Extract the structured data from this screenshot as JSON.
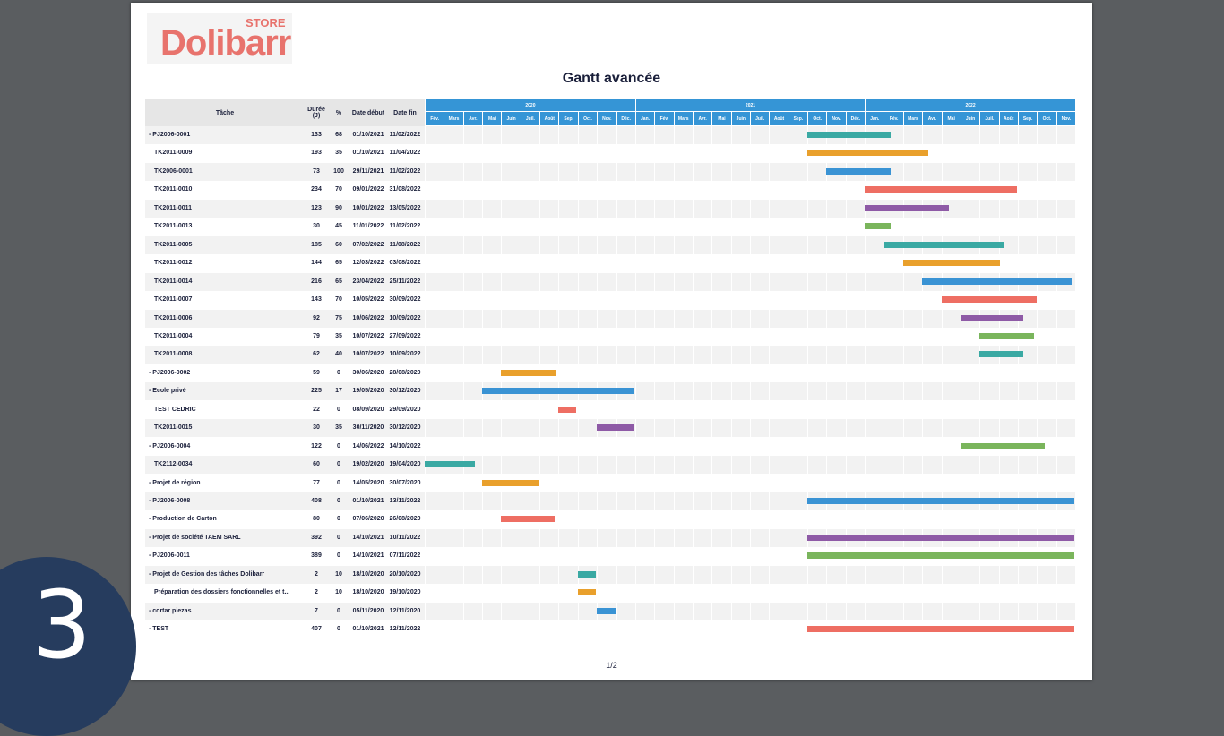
{
  "logo": {
    "main": "Dolibarr",
    "store": "STORE"
  },
  "title": "Gantt avancée",
  "columns": {
    "task": "Tâche",
    "duration": "Durée\n(J)",
    "percent": "%",
    "start": "Date début",
    "end": "Date fin"
  },
  "years": [
    "2020",
    "2021",
    "2022"
  ],
  "months": [
    "Fév.",
    "Mars",
    "Avr.",
    "Mai",
    "Juin",
    "Juil.",
    "Août",
    "Sep.",
    "Oct.",
    "Nov.",
    "Déc.",
    "Jan.",
    "Fév.",
    "Mars",
    "Avr.",
    "Mai",
    "Juin",
    "Juil.",
    "Août",
    "Sep.",
    "Oct.",
    "Nov.",
    "Déc.",
    "Jan.",
    "Fév.",
    "Mars",
    "Avr.",
    "Mai",
    "Juin",
    "Juil.",
    "Août",
    "Sep.",
    "Oct.",
    "Nov."
  ],
  "colors": {
    "blue": "#3a93d4",
    "teal": "#3aa9a3",
    "orange": "#e9a02c",
    "red": "#ee6e63",
    "purple": "#8e5aa6",
    "green": "#7ab55c"
  },
  "rows": [
    {
      "task": "- PJ2006-0001",
      "dur": "133",
      "pct": "68",
      "start": "01/10/2021",
      "end": "11/02/2022",
      "color": "teal",
      "top": true,
      "s": [
        2021,
        10,
        1
      ],
      "e": [
        2022,
        2,
        11
      ]
    },
    {
      "task": "TK2011-0009",
      "dur": "193",
      "pct": "35",
      "start": "01/10/2021",
      "end": "11/04/2022",
      "color": "orange",
      "top": false,
      "s": [
        2021,
        10,
        1
      ],
      "e": [
        2022,
        4,
        11
      ]
    },
    {
      "task": "TK2006-0001",
      "dur": "73",
      "pct": "100",
      "start": "29/11/2021",
      "end": "11/02/2022",
      "color": "blue",
      "top": false,
      "s": [
        2021,
        11,
        1
      ],
      "e": [
        2022,
        2,
        11
      ]
    },
    {
      "task": "TK2011-0010",
      "dur": "234",
      "pct": "70",
      "start": "09/01/2022",
      "end": "31/08/2022",
      "color": "red",
      "top": false,
      "s": [
        2022,
        1,
        1
      ],
      "e": [
        2022,
        8,
        31
      ]
    },
    {
      "task": "TK2011-0011",
      "dur": "123",
      "pct": "90",
      "start": "10/01/2022",
      "end": "13/05/2022",
      "color": "purple",
      "top": false,
      "s": [
        2022,
        1,
        1
      ],
      "e": [
        2022,
        5,
        13
      ]
    },
    {
      "task": "TK2011-0013",
      "dur": "30",
      "pct": "45",
      "start": "11/01/2022",
      "end": "11/02/2022",
      "color": "green",
      "top": false,
      "s": [
        2022,
        1,
        1
      ],
      "e": [
        2022,
        2,
        11
      ]
    },
    {
      "task": "TK2011-0005",
      "dur": "185",
      "pct": "60",
      "start": "07/02/2022",
      "end": "11/08/2022",
      "color": "teal",
      "top": false,
      "s": [
        2022,
        2,
        1
      ],
      "e": [
        2022,
        8,
        11
      ]
    },
    {
      "task": "TK2011-0012",
      "dur": "144",
      "pct": "65",
      "start": "12/03/2022",
      "end": "03/08/2022",
      "color": "orange",
      "top": false,
      "s": [
        2022,
        3,
        1
      ],
      "e": [
        2022,
        8,
        3
      ]
    },
    {
      "task": "TK2011-0014",
      "dur": "216",
      "pct": "65",
      "start": "23/04/2022",
      "end": "25/11/2022",
      "color": "blue",
      "top": false,
      "s": [
        2022,
        4,
        1
      ],
      "e": [
        2022,
        11,
        25
      ]
    },
    {
      "task": "TK2011-0007",
      "dur": "143",
      "pct": "70",
      "start": "10/05/2022",
      "end": "30/09/2022",
      "color": "red",
      "top": false,
      "s": [
        2022,
        5,
        1
      ],
      "e": [
        2022,
        9,
        30
      ]
    },
    {
      "task": "TK2011-0006",
      "dur": "92",
      "pct": "75",
      "start": "10/06/2022",
      "end": "10/09/2022",
      "color": "purple",
      "top": false,
      "s": [
        2022,
        6,
        1
      ],
      "e": [
        2022,
        9,
        10
      ]
    },
    {
      "task": "TK2011-0004",
      "dur": "79",
      "pct": "35",
      "start": "10/07/2022",
      "end": "27/09/2022",
      "color": "green",
      "top": false,
      "s": [
        2022,
        7,
        1
      ],
      "e": [
        2022,
        9,
        27
      ]
    },
    {
      "task": "TK2011-0008",
      "dur": "62",
      "pct": "40",
      "start": "10/07/2022",
      "end": "10/09/2022",
      "color": "teal",
      "top": false,
      "s": [
        2022,
        7,
        1
      ],
      "e": [
        2022,
        9,
        10
      ]
    },
    {
      "task": "- PJ2006-0002",
      "dur": "59",
      "pct": "0",
      "start": "30/06/2020",
      "end": "28/08/2020",
      "color": "orange",
      "top": true,
      "s": [
        2020,
        6,
        1
      ],
      "e": [
        2020,
        8,
        28
      ]
    },
    {
      "task": "- Ecole privé",
      "dur": "225",
      "pct": "17",
      "start": "19/05/2020",
      "end": "30/12/2020",
      "color": "blue",
      "top": true,
      "s": [
        2020,
        5,
        1
      ],
      "e": [
        2020,
        12,
        30
      ]
    },
    {
      "task": "TEST CEDRIC",
      "dur": "22",
      "pct": "0",
      "start": "08/09/2020",
      "end": "29/09/2020",
      "color": "red",
      "top": false,
      "s": [
        2020,
        9,
        1
      ],
      "e": [
        2020,
        9,
        29
      ]
    },
    {
      "task": "TK2011-0015",
      "dur": "30",
      "pct": "35",
      "start": "30/11/2020",
      "end": "30/12/2020",
      "color": "purple",
      "top": false,
      "s": [
        2020,
        11,
        1
      ],
      "e": [
        2020,
        12,
        30
      ]
    },
    {
      "task": "- PJ2006-0004",
      "dur": "122",
      "pct": "0",
      "start": "14/06/2022",
      "end": "14/10/2022",
      "color": "green",
      "top": true,
      "s": [
        2022,
        6,
        1
      ],
      "e": [
        2022,
        10,
        14
      ]
    },
    {
      "task": "TK2112-0034",
      "dur": "60",
      "pct": "0",
      "start": "19/02/2020",
      "end": "19/04/2020",
      "color": "teal",
      "top": false,
      "s": [
        2020,
        2,
        1
      ],
      "e": [
        2020,
        4,
        19
      ]
    },
    {
      "task": "- Projet de région",
      "dur": "77",
      "pct": "0",
      "start": "14/05/2020",
      "end": "30/07/2020",
      "color": "orange",
      "top": true,
      "s": [
        2020,
        5,
        1
      ],
      "e": [
        2020,
        7,
        30
      ]
    },
    {
      "task": "- PJ2006-0008",
      "dur": "408",
      "pct": "0",
      "start": "01/10/2021",
      "end": "13/11/2022",
      "color": "blue",
      "top": true,
      "s": [
        2021,
        10,
        1
      ],
      "e": [
        2022,
        11,
        30
      ]
    },
    {
      "task": "- Production de Carton",
      "dur": "80",
      "pct": "0",
      "start": "07/06/2020",
      "end": "26/08/2020",
      "color": "red",
      "top": true,
      "s": [
        2020,
        6,
        1
      ],
      "e": [
        2020,
        8,
        26
      ]
    },
    {
      "task": "- Projet de société TAEM SARL",
      "dur": "392",
      "pct": "0",
      "start": "14/10/2021",
      "end": "10/11/2022",
      "color": "purple",
      "top": true,
      "s": [
        2021,
        10,
        1
      ],
      "e": [
        2022,
        11,
        30
      ]
    },
    {
      "task": "- PJ2006-0011",
      "dur": "389",
      "pct": "0",
      "start": "14/10/2021",
      "end": "07/11/2022",
      "color": "green",
      "top": true,
      "s": [
        2021,
        10,
        1
      ],
      "e": [
        2022,
        11,
        30
      ]
    },
    {
      "task": "- Projet de Gestion des tâches Dolibarr",
      "dur": "2",
      "pct": "10",
      "start": "18/10/2020",
      "end": "20/10/2020",
      "color": "teal",
      "top": true,
      "s": [
        2020,
        10,
        1
      ],
      "e": [
        2020,
        10,
        30
      ]
    },
    {
      "task": "Préparation des dossiers fonctionnelles et t...",
      "dur": "2",
      "pct": "10",
      "start": "18/10/2020",
      "end": "19/10/2020",
      "color": "orange",
      "top": false,
      "s": [
        2020,
        10,
        1
      ],
      "e": [
        2020,
        10,
        30
      ]
    },
    {
      "task": "- cortar piezas",
      "dur": "7",
      "pct": "0",
      "start": "05/11/2020",
      "end": "12/11/2020",
      "color": "blue",
      "top": true,
      "s": [
        2020,
        11,
        1
      ],
      "e": [
        2020,
        11,
        30
      ]
    },
    {
      "task": "- TEST",
      "dur": "407",
      "pct": "0",
      "start": "01/10/2021",
      "end": "12/11/2022",
      "color": "red",
      "top": true,
      "s": [
        2021,
        10,
        1
      ],
      "e": [
        2022,
        11,
        30
      ]
    }
  ],
  "page_number": "1/2",
  "slide_badge": "3"
}
